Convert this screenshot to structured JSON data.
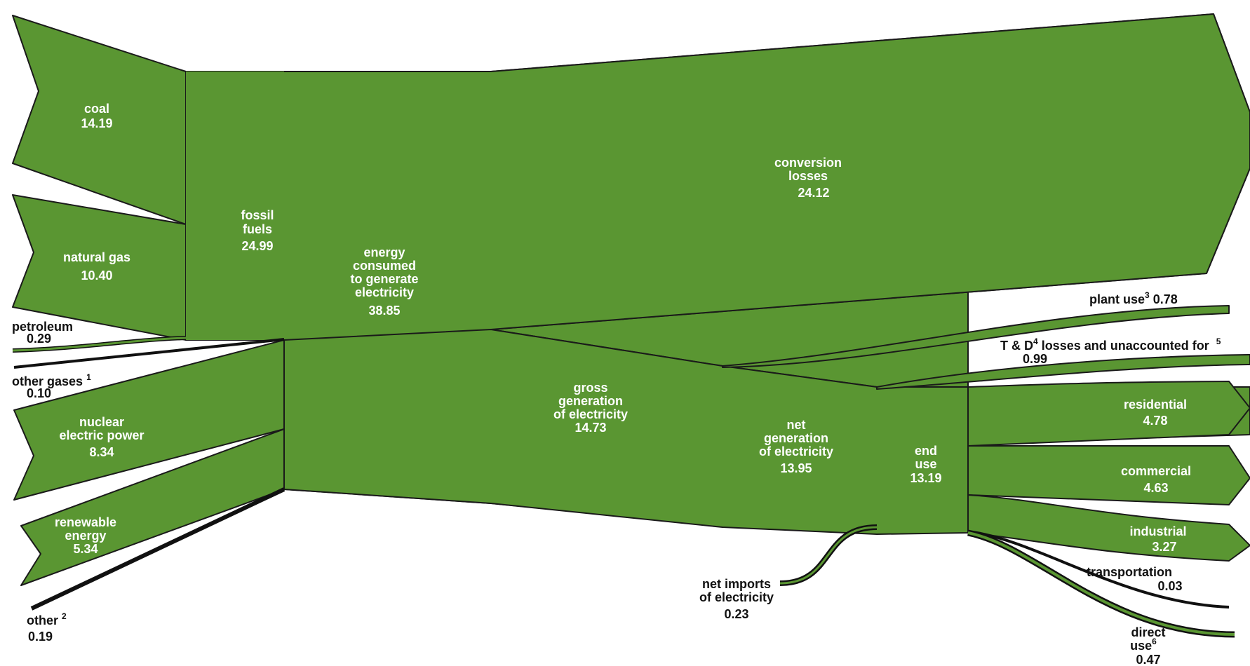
{
  "sources": {
    "coal": {
      "label": "coal",
      "value": "14.19"
    },
    "natural_gas": {
      "label": "natural gas",
      "value": "10.40"
    },
    "petroleum": {
      "label": "petroleum",
      "value": "0.29"
    },
    "other_gases": {
      "label": "other gases",
      "note": "1",
      "value": "0.10"
    },
    "nuclear": {
      "label1": "nuclear",
      "label2": "electric power",
      "value": "8.34"
    },
    "renewable": {
      "label1": "renewable",
      "label2": "energy",
      "value": "5.34"
    },
    "other": {
      "label": "other",
      "note": "2",
      "value": "0.19"
    }
  },
  "fossil_fuels": {
    "label1": "fossil",
    "label2": "fuels",
    "value": "24.99"
  },
  "energy_consumed": {
    "label1": "energy",
    "label2": "consumed",
    "label3": "to generate",
    "label4": "electricity",
    "value": "38.85"
  },
  "conversion_losses": {
    "label1": "conversion",
    "label2": "losses",
    "value": "24.12"
  },
  "gross_generation": {
    "label1": "gross",
    "label2": "generation",
    "label3": "of electricity",
    "value": "14.73"
  },
  "plant_use": {
    "label": "plant use",
    "note": "3",
    "value": "0.78"
  },
  "td_losses": {
    "label_a": "T & D",
    "note_a": "4",
    "label_b": " losses and unaccounted for",
    "note_b": "5",
    "value": "0.99"
  },
  "net_generation": {
    "label1": "net",
    "label2": "generation",
    "label3": "of electricity",
    "value": "13.95"
  },
  "end_use": {
    "label1": "end",
    "label2": "use",
    "value": "13.19"
  },
  "residential": {
    "label": "residential",
    "value": "4.78"
  },
  "commercial": {
    "label": "commercial",
    "value": "4.63"
  },
  "industrial": {
    "label": "industrial",
    "value": "3.27"
  },
  "transportation": {
    "label": "transportation",
    "value": "0.03"
  },
  "direct_use": {
    "label1": "direct",
    "label2": "use",
    "note": "6",
    "value": "0.47"
  },
  "net_imports": {
    "label1": "net imports",
    "label2": "of electricity",
    "value": "0.23"
  },
  "colors": {
    "flow": "#5a9632",
    "outline": "#1a1a1a"
  }
}
